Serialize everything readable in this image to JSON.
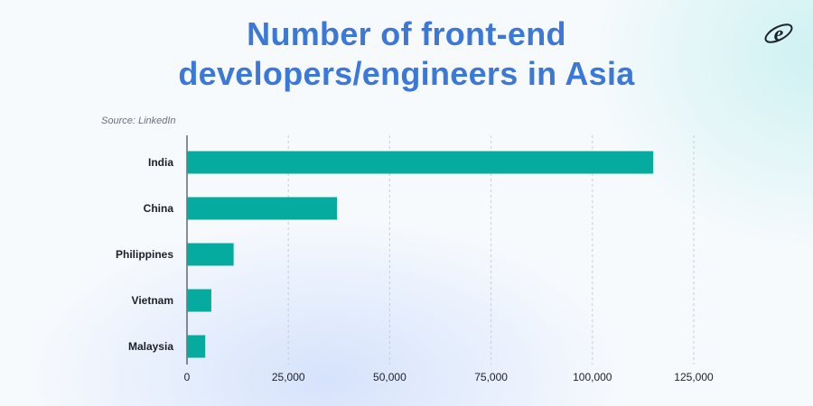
{
  "chart_data": {
    "type": "bar",
    "orientation": "horizontal",
    "title_lines": [
      "Number of front-end",
      "developers/engineers in Asia"
    ],
    "source": "Source: LinkedIn",
    "categories": [
      "India",
      "China",
      "Philippines",
      "Vietnam",
      "Malaysia"
    ],
    "values": [
      115000,
      37000,
      11500,
      6000,
      4500
    ],
    "xlim": [
      0,
      125000
    ],
    "xticks": [
      0,
      25000,
      50000,
      75000,
      100000,
      125000
    ],
    "xtick_labels": [
      "0",
      "25,000",
      "50,000",
      "75,000",
      "100,000",
      "125,000"
    ],
    "grid": "vertical dashed",
    "bar_color": "#04ab9e",
    "grid_color": "#c9ced6"
  },
  "colors": {
    "title": "#3b78d8",
    "logo": "#1e2230"
  },
  "logo_icon": "e-logo-icon"
}
